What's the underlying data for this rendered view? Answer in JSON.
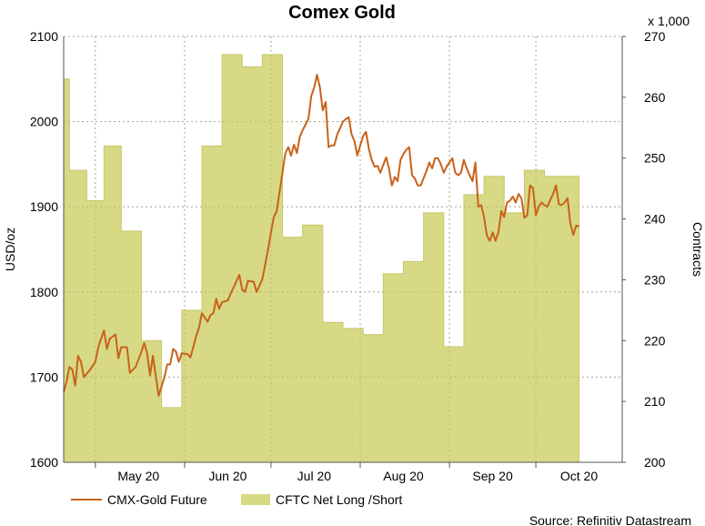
{
  "chart_data": {
    "type": "line",
    "title": "Comex Gold",
    "source": "Source: Refinitiv Datastream",
    "left_axis": {
      "label": "USD/oz",
      "range": [
        1600,
        2100
      ],
      "ticks": [
        "1600",
        "1700",
        "1800",
        "1900",
        "2000",
        "2100"
      ]
    },
    "right_axis": {
      "label": "Contracts",
      "multiplier_label": "x 1,000",
      "range": [
        200,
        270
      ],
      "ticks": [
        "200",
        "210",
        "220",
        "230",
        "240",
        "250",
        "260",
        "270"
      ]
    },
    "x_axis": {
      "range": [
        "2020-04-20",
        "2020-10-31"
      ],
      "tick_labels": [
        "May 20",
        "Jun 20",
        "Jul 20",
        "Aug 20",
        "Sep 20",
        "Oct 20"
      ]
    },
    "grid": true,
    "legend_position": "bottom",
    "series": [
      {
        "name": "CMX-Gold Future",
        "axis": "left",
        "style": "line",
        "color": "#c8621a",
        "points": [
          [
            "2020-04-20",
            1682
          ],
          [
            "2020-04-21",
            1695
          ],
          [
            "2020-04-22",
            1712
          ],
          [
            "2020-04-23",
            1709
          ],
          [
            "2020-04-24",
            1690
          ],
          [
            "2020-04-25",
            1725
          ],
          [
            "2020-04-26",
            1718
          ],
          [
            "2020-04-27",
            1700
          ],
          [
            "2020-04-29",
            1708
          ],
          [
            "2020-05-01",
            1718
          ],
          [
            "2020-05-02",
            1735
          ],
          [
            "2020-05-04",
            1755
          ],
          [
            "2020-05-05",
            1733
          ],
          [
            "2020-05-06",
            1745
          ],
          [
            "2020-05-08",
            1750
          ],
          [
            "2020-05-09",
            1722
          ],
          [
            "2020-05-10",
            1735
          ],
          [
            "2020-05-12",
            1735
          ],
          [
            "2020-05-13",
            1705
          ],
          [
            "2020-05-15",
            1712
          ],
          [
            "2020-05-17",
            1730
          ],
          [
            "2020-05-18",
            1740
          ],
          [
            "2020-05-19",
            1728
          ],
          [
            "2020-05-20",
            1702
          ],
          [
            "2020-05-21",
            1725
          ],
          [
            "2020-05-23",
            1678
          ],
          [
            "2020-05-25",
            1700
          ],
          [
            "2020-05-26",
            1715
          ],
          [
            "2020-05-27",
            1715
          ],
          [
            "2020-05-28",
            1733
          ],
          [
            "2020-05-29",
            1730
          ],
          [
            "2020-05-30",
            1718
          ],
          [
            "2020-05-31",
            1728
          ],
          [
            "2020-06-02",
            1727
          ],
          [
            "2020-06-03",
            1723
          ],
          [
            "2020-06-04",
            1735
          ],
          [
            "2020-06-05",
            1748
          ],
          [
            "2020-06-06",
            1758
          ],
          [
            "2020-06-07",
            1775
          ],
          [
            "2020-06-09",
            1765
          ],
          [
            "2020-06-10",
            1773
          ],
          [
            "2020-06-11",
            1775
          ],
          [
            "2020-06-12",
            1792
          ],
          [
            "2020-06-13",
            1780
          ],
          [
            "2020-06-14",
            1788
          ],
          [
            "2020-06-16",
            1790
          ],
          [
            "2020-06-17",
            1798
          ],
          [
            "2020-06-20",
            1820
          ],
          [
            "2020-06-21",
            1803
          ],
          [
            "2020-06-22",
            1800
          ],
          [
            "2020-06-23",
            1813
          ],
          [
            "2020-06-25",
            1812
          ],
          [
            "2020-06-26",
            1800
          ],
          [
            "2020-06-28",
            1815
          ],
          [
            "2020-06-30",
            1850
          ],
          [
            "2020-07-01",
            1870
          ],
          [
            "2020-07-02",
            1888
          ],
          [
            "2020-07-03",
            1895
          ],
          [
            "2020-07-05",
            1940
          ],
          [
            "2020-07-06",
            1963
          ],
          [
            "2020-07-07",
            1970
          ],
          [
            "2020-07-08",
            1960
          ],
          [
            "2020-07-09",
            1973
          ],
          [
            "2020-07-10",
            1963
          ],
          [
            "2020-07-11",
            1982
          ],
          [
            "2020-07-12",
            1990
          ],
          [
            "2020-07-14",
            2003
          ],
          [
            "2020-07-15",
            2030
          ],
          [
            "2020-07-16",
            2040
          ],
          [
            "2020-07-17",
            2055
          ],
          [
            "2020-07-18",
            2040
          ],
          [
            "2020-07-19",
            2013
          ],
          [
            "2020-07-20",
            2023
          ],
          [
            "2020-07-21",
            1970
          ],
          [
            "2020-07-22",
            1972
          ],
          [
            "2020-07-23",
            1972
          ],
          [
            "2020-07-24",
            1985
          ],
          [
            "2020-07-25",
            1992
          ],
          [
            "2020-07-26",
            2000
          ],
          [
            "2020-07-27",
            2003
          ],
          [
            "2020-07-28",
            2005
          ],
          [
            "2020-07-29",
            1985
          ],
          [
            "2020-07-30",
            1977
          ],
          [
            "2020-07-31",
            1960
          ],
          [
            "2020-08-01",
            1972
          ],
          [
            "2020-08-02",
            1983
          ],
          [
            "2020-08-03",
            1988
          ],
          [
            "2020-08-04",
            1968
          ],
          [
            "2020-08-05",
            1955
          ],
          [
            "2020-08-06",
            1947
          ],
          [
            "2020-08-07",
            1948
          ],
          [
            "2020-08-08",
            1940
          ],
          [
            "2020-08-10",
            1958
          ],
          [
            "2020-08-11",
            1945
          ],
          [
            "2020-08-12",
            1925
          ],
          [
            "2020-08-13",
            1935
          ],
          [
            "2020-08-14",
            1930
          ],
          [
            "2020-08-15",
            1955
          ],
          [
            "2020-08-16",
            1962
          ],
          [
            "2020-08-17",
            1967
          ],
          [
            "2020-08-18",
            1970
          ],
          [
            "2020-08-19",
            1937
          ],
          [
            "2020-08-20",
            1933
          ],
          [
            "2020-08-21",
            1925
          ],
          [
            "2020-08-22",
            1925
          ],
          [
            "2020-08-24",
            1942
          ],
          [
            "2020-08-25",
            1952
          ],
          [
            "2020-08-26",
            1945
          ],
          [
            "2020-08-27",
            1957
          ],
          [
            "2020-08-28",
            1957
          ],
          [
            "2020-08-29",
            1950
          ],
          [
            "2020-08-30",
            1940
          ],
          [
            "2020-08-31",
            1947
          ],
          [
            "2020-09-01",
            1952
          ],
          [
            "2020-09-02",
            1957
          ],
          [
            "2020-09-03",
            1940
          ],
          [
            "2020-09-04",
            1937
          ],
          [
            "2020-09-05",
            1940
          ],
          [
            "2020-09-06",
            1955
          ],
          [
            "2020-09-07",
            1945
          ],
          [
            "2020-09-08",
            1937
          ],
          [
            "2020-09-09",
            1930
          ],
          [
            "2020-09-10",
            1952
          ],
          [
            "2020-09-11",
            1900
          ],
          [
            "2020-09-12",
            1902
          ],
          [
            "2020-09-13",
            1888
          ],
          [
            "2020-09-14",
            1866
          ],
          [
            "2020-09-15",
            1860
          ],
          [
            "2020-09-16",
            1870
          ],
          [
            "2020-09-17",
            1860
          ],
          [
            "2020-09-18",
            1870
          ],
          [
            "2020-09-19",
            1895
          ],
          [
            "2020-09-20",
            1888
          ],
          [
            "2020-09-21",
            1905
          ],
          [
            "2020-09-22",
            1907
          ],
          [
            "2020-09-23",
            1912
          ],
          [
            "2020-09-24",
            1905
          ],
          [
            "2020-09-25",
            1915
          ],
          [
            "2020-09-26",
            1910
          ],
          [
            "2020-09-27",
            1887
          ],
          [
            "2020-09-28",
            1890
          ],
          [
            "2020-09-29",
            1925
          ],
          [
            "2020-09-30",
            1922
          ],
          [
            "2020-10-01",
            1890
          ],
          [
            "2020-10-02",
            1900
          ],
          [
            "2020-10-03",
            1905
          ],
          [
            "2020-10-04",
            1902
          ],
          [
            "2020-10-05",
            1900
          ],
          [
            "2020-10-06",
            1908
          ],
          [
            "2020-10-07",
            1915
          ],
          [
            "2020-10-08",
            1925
          ],
          [
            "2020-10-09",
            1903
          ],
          [
            "2020-10-10",
            1902
          ],
          [
            "2020-10-11",
            1905
          ],
          [
            "2020-10-12",
            1910
          ],
          [
            "2020-10-13",
            1880
          ],
          [
            "2020-10-14",
            1867
          ],
          [
            "2020-10-15",
            1878
          ],
          [
            "2020-10-16",
            1877
          ]
        ]
      },
      {
        "name": "CFTC Net Long /Short",
        "axis": "right",
        "style": "step-area",
        "color": "#d7d985",
        "edge_color": "#c8c86a",
        "points": [
          [
            "2020-04-20",
            263
          ],
          [
            "2020-04-22",
            248
          ],
          [
            "2020-04-28",
            243
          ],
          [
            "2020-05-04",
            252
          ],
          [
            "2020-05-10",
            238
          ],
          [
            "2020-05-17",
            220
          ],
          [
            "2020-05-24",
            209
          ],
          [
            "2020-05-31",
            225
          ],
          [
            "2020-06-07",
            252
          ],
          [
            "2020-06-14",
            267
          ],
          [
            "2020-06-21",
            265
          ],
          [
            "2020-06-28",
            267
          ],
          [
            "2020-07-05",
            237
          ],
          [
            "2020-07-12",
            239
          ],
          [
            "2020-07-19",
            223
          ],
          [
            "2020-07-26",
            222
          ],
          [
            "2020-08-02",
            221
          ],
          [
            "2020-08-09",
            231
          ],
          [
            "2020-08-16",
            233
          ],
          [
            "2020-08-23",
            241
          ],
          [
            "2020-08-30",
            219
          ],
          [
            "2020-09-06",
            244
          ],
          [
            "2020-09-13",
            247
          ],
          [
            "2020-09-20",
            241
          ],
          [
            "2020-09-27",
            248
          ],
          [
            "2020-10-04",
            247
          ],
          [
            "2020-10-11",
            247
          ]
        ],
        "end": "2020-10-16"
      }
    ]
  }
}
